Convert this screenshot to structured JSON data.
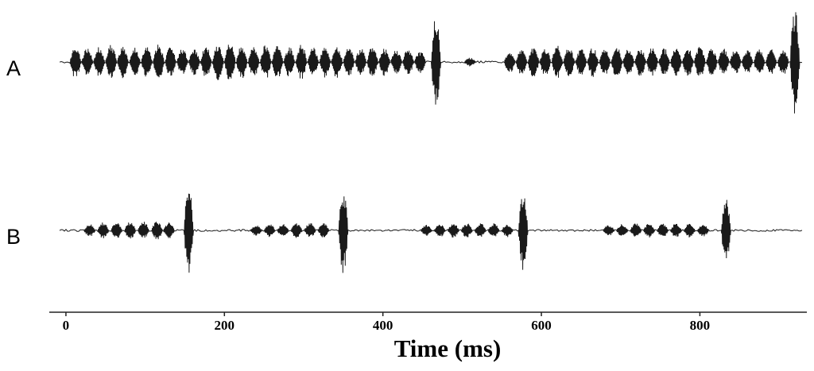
{
  "chart_data": {
    "type": "oscillogram",
    "x_label": "Time (ms)",
    "xlim": [
      -21,
      935
    ],
    "xticks": [
      0,
      200,
      400,
      600,
      800
    ],
    "ylim": [
      -1,
      1
    ],
    "series": [
      {
        "name": "A",
        "color": "#1a1a1a",
        "x": [
          12,
          27,
          42,
          57,
          72,
          87,
          102,
          117,
          132,
          147,
          162,
          177,
          192,
          207,
          222,
          237,
          252,
          267,
          282,
          297,
          312,
          327,
          342,
          357,
          372,
          387,
          402,
          417,
          432,
          447,
          467,
          510,
          560,
          575,
          590,
          605,
          620,
          635,
          650,
          665,
          680,
          695,
          710,
          725,
          740,
          755,
          770,
          785,
          800,
          815,
          830,
          845,
          860,
          875,
          890,
          905,
          920
        ],
        "values": [
          0.3,
          0.25,
          0.28,
          0.32,
          0.3,
          0.26,
          0.3,
          0.33,
          0.27,
          0.25,
          0.24,
          0.3,
          0.33,
          0.35,
          0.3,
          0.28,
          0.32,
          0.3,
          0.27,
          0.32,
          0.26,
          0.28,
          0.3,
          0.27,
          0.25,
          0.28,
          0.25,
          0.22,
          0.25,
          0.2,
          0.85,
          0.08,
          0.2,
          0.25,
          0.28,
          0.25,
          0.3,
          0.27,
          0.25,
          0.27,
          0.25,
          0.3,
          0.24,
          0.26,
          0.28,
          0.25,
          0.25,
          0.27,
          0.3,
          0.26,
          0.25,
          0.24,
          0.22,
          0.25,
          0.23,
          0.24,
          1.0
        ]
      },
      {
        "name": "B",
        "color": "#1a1a1a",
        "x": [
          30,
          47,
          64,
          81,
          98,
          115,
          130,
          155,
          240,
          257,
          274,
          291,
          308,
          325,
          350,
          455,
          472,
          489,
          506,
          523,
          540,
          557,
          577,
          685,
          702,
          719,
          736,
          753,
          770,
          787,
          804,
          833
        ],
        "values": [
          0.12,
          0.15,
          0.15,
          0.16,
          0.16,
          0.17,
          0.15,
          0.8,
          0.1,
          0.12,
          0.13,
          0.14,
          0.14,
          0.13,
          0.78,
          0.1,
          0.12,
          0.13,
          0.13,
          0.13,
          0.13,
          0.12,
          0.74,
          0.1,
          0.12,
          0.13,
          0.13,
          0.13,
          0.13,
          0.13,
          0.12,
          0.58
        ]
      }
    ]
  }
}
